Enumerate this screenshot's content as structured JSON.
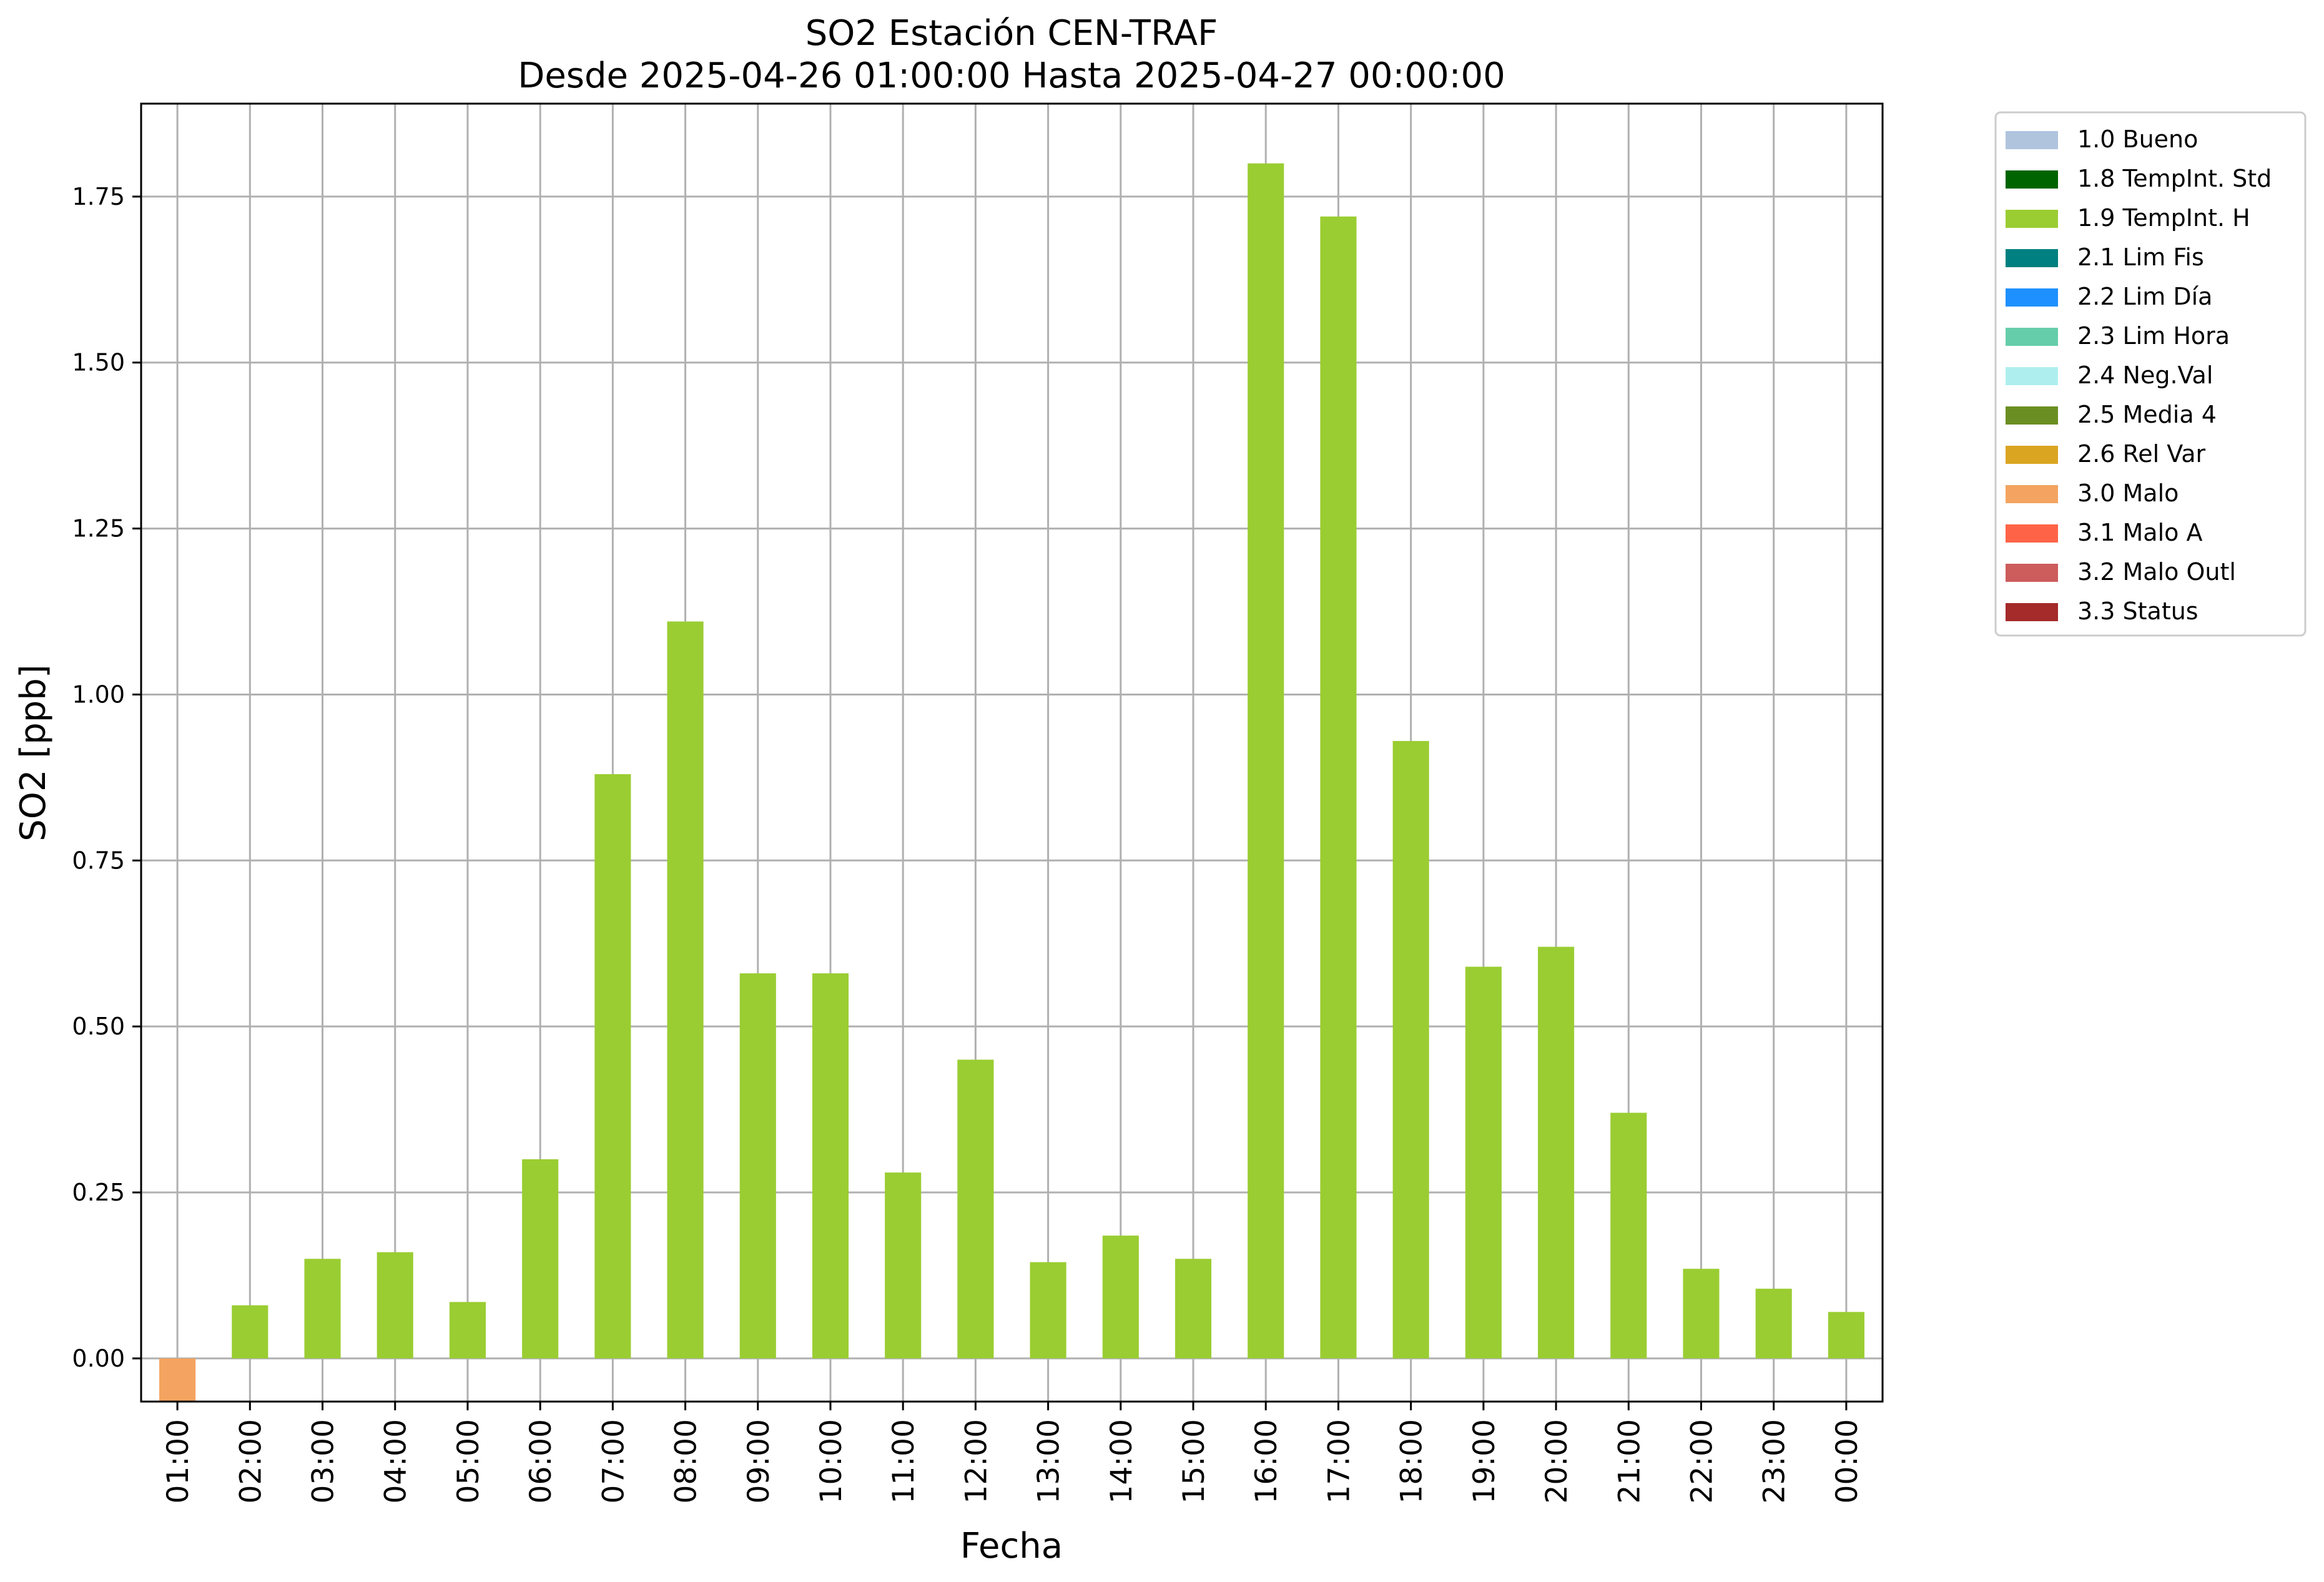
{
  "chart_data": {
    "type": "bar",
    "title": "SO2 Estación CEN-TRAF",
    "subtitle": "Desde 2025-04-26 01:00:00 Hasta 2025-04-27 00:00:00",
    "xlabel": "Fecha",
    "ylabel": "SO2 [ppb]",
    "ylim": [
      -0.065,
      1.89
    ],
    "yticks": [
      "0.00",
      "0.25",
      "0.50",
      "0.75",
      "1.00",
      "1.25",
      "1.50",
      "1.75"
    ],
    "ytick_values": [
      0,
      0.25,
      0.5,
      0.75,
      1.0,
      1.25,
      1.5,
      1.75
    ],
    "grid": true,
    "legend_position": "outside-top-right",
    "categories": [
      "01:00",
      "02:00",
      "03:00",
      "04:00",
      "05:00",
      "06:00",
      "07:00",
      "08:00",
      "09:00",
      "10:00",
      "11:00",
      "12:00",
      "13:00",
      "14:00",
      "15:00",
      "16:00",
      "17:00",
      "18:00",
      "19:00",
      "20:00",
      "21:00",
      "22:00",
      "23:00",
      "00:00"
    ],
    "values": [
      -0.065,
      0.08,
      0.15,
      0.16,
      0.085,
      0.3,
      0.88,
      1.11,
      0.58,
      0.58,
      0.28,
      0.45,
      0.145,
      0.185,
      0.15,
      1.8,
      1.72,
      0.93,
      0.59,
      0.62,
      0.37,
      0.135,
      0.105,
      0.07
    ],
    "bar_flags": [
      "3.0 Malo",
      "1.9 TempInt. H",
      "1.9 TempInt. H",
      "1.9 TempInt. H",
      "1.9 TempInt. H",
      "1.9 TempInt. H",
      "1.9 TempInt. H",
      "1.9 TempInt. H",
      "1.9 TempInt. H",
      "1.9 TempInt. H",
      "1.9 TempInt. H",
      "1.9 TempInt. H",
      "1.9 TempInt. H",
      "1.9 TempInt. H",
      "1.9 TempInt. H",
      "1.9 TempInt. H",
      "1.9 TempInt. H",
      "1.9 TempInt. H",
      "1.9 TempInt. H",
      "1.9 TempInt. H",
      "1.9 TempInt. H",
      "1.9 TempInt. H",
      "1.9 TempInt. H",
      "1.9 TempInt. H"
    ],
    "legend": [
      {
        "label": "1.0 Bueno",
        "color": "#b0c4de"
      },
      {
        "label": "1.8 TempInt. Std",
        "color": "#006400"
      },
      {
        "label": "1.9 TempInt. H",
        "color": "#9acd32"
      },
      {
        "label": "2.1 Lim Fis",
        "color": "#008080"
      },
      {
        "label": "2.2 Lim Día",
        "color": "#1e90ff"
      },
      {
        "label": "2.3 Lim Hora",
        "color": "#66cdaa"
      },
      {
        "label": "2.4 Neg.Val",
        "color": "#afeeee"
      },
      {
        "label": "2.5 Media 4",
        "color": "#6b8e23"
      },
      {
        "label": "2.6 Rel Var",
        "color": "#daa520"
      },
      {
        "label": "3.0 Malo",
        "color": "#f4a460"
      },
      {
        "label": "3.1 Malo A",
        "color": "#ff6347"
      },
      {
        "label": "3.2 Malo Outl",
        "color": "#cd5c5c"
      },
      {
        "label": "3.3 Status",
        "color": "#a52a2a"
      }
    ]
  }
}
